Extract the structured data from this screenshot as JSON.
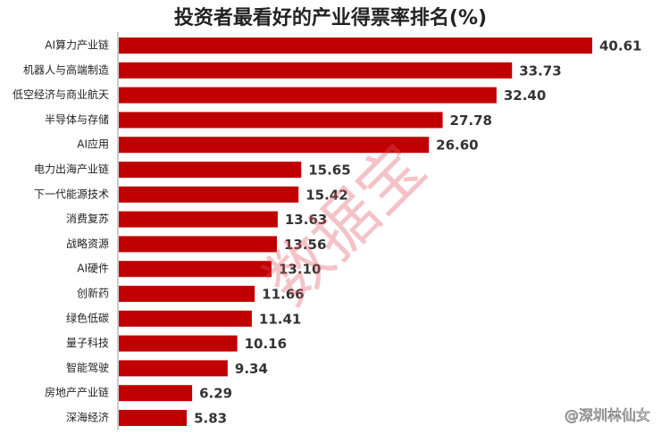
{
  "chart_data": {
    "type": "bar",
    "orientation": "horizontal",
    "title": "投资者最看好的产业得票率排名(%)",
    "categories": [
      "AI算力产业链",
      "机器人与高端制造",
      "低空经济与商业航天",
      "半导体与存储",
      "AI应用",
      "电力出海产业链",
      "下一代能源技术",
      "消费复苏",
      "战略资源",
      "AI硬件",
      "创新药",
      "绿色低碳",
      "量子科技",
      "智能驾驶",
      "房地产产业链",
      "深海经济"
    ],
    "values": [
      40.61,
      33.73,
      32.4,
      27.78,
      26.6,
      15.65,
      15.42,
      13.63,
      13.56,
      13.1,
      11.66,
      11.41,
      10.16,
      9.34,
      6.29,
      5.83
    ],
    "value_labels": [
      "40.61",
      "33.73",
      "32.40",
      "27.78",
      "26.60",
      "15.65",
      "15.42",
      "13.63",
      "13.56",
      "13.10",
      "11.66",
      "11.41",
      "10.16",
      "9.34",
      "6.29",
      "5.83"
    ],
    "color": "#c00000",
    "watermark": "数据宝",
    "credit": "@深圳林仙女"
  }
}
